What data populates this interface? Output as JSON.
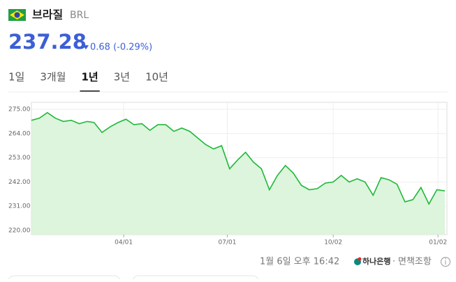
{
  "header": {
    "country": "브라질",
    "code": "BRL",
    "price": "237.28",
    "change": "0.68 (-0.29%)"
  },
  "tabs": [
    "1일",
    "3개월",
    "1년",
    "3년",
    "10년"
  ],
  "selected_tab": 2,
  "chart_data": {
    "type": "line",
    "x": [
      "01/10",
      "01/17",
      "01/24",
      "01/31",
      "02/07",
      "02/14",
      "02/21",
      "02/28",
      "03/06",
      "03/13",
      "03/20",
      "03/27",
      "04/03",
      "04/10",
      "04/17",
      "04/24",
      "05/01",
      "05/08",
      "05/15",
      "05/22",
      "05/29",
      "06/05",
      "06/12",
      "06/19",
      "06/26",
      "07/03",
      "07/10",
      "07/17",
      "07/24",
      "07/31",
      "08/07",
      "08/14",
      "08/21",
      "08/28",
      "09/04",
      "09/11",
      "09/18",
      "09/25",
      "10/02",
      "10/09",
      "10/16",
      "10/23",
      "10/30",
      "11/06",
      "11/13",
      "11/20",
      "11/27",
      "12/04",
      "12/11",
      "12/18",
      "12/25",
      "01/01",
      "01/08"
    ],
    "series": [
      {
        "name": "BRL",
        "color": "#1fb83a",
        "values": [
          270,
          271,
          273.5,
          271,
          269.5,
          270,
          268.5,
          269.5,
          269,
          264.5,
          267,
          269,
          270.5,
          268,
          268.5,
          265.5,
          268,
          268,
          265,
          266.5,
          265,
          262,
          259,
          257,
          258.5,
          248,
          252,
          255.5,
          251,
          248,
          238.5,
          245,
          249.5,
          246,
          240.5,
          238.5,
          239,
          241.5,
          242,
          245,
          242,
          243.5,
          242,
          236,
          244,
          243,
          241,
          233,
          234,
          239.5,
          232,
          238.5,
          238
        ]
      }
    ],
    "ylim": [
      220,
      275
    ],
    "yticks": [
      {
        "value": 220,
        "label": "220.00"
      },
      {
        "value": 231,
        "label": "231.00"
      },
      {
        "value": 242,
        "label": "242.00"
      },
      {
        "value": 253,
        "label": "253.00"
      },
      {
        "value": 264,
        "label": "264.00"
      },
      {
        "value": 275,
        "label": "275.00"
      }
    ],
    "xticks": [
      "04/01",
      "07/01",
      "10/02",
      "01/02"
    ],
    "grid": true
  },
  "footer": {
    "timestamp": "1월 6일 오후 16:42",
    "bank": "하나은행",
    "disclaimer": "면책조항"
  }
}
